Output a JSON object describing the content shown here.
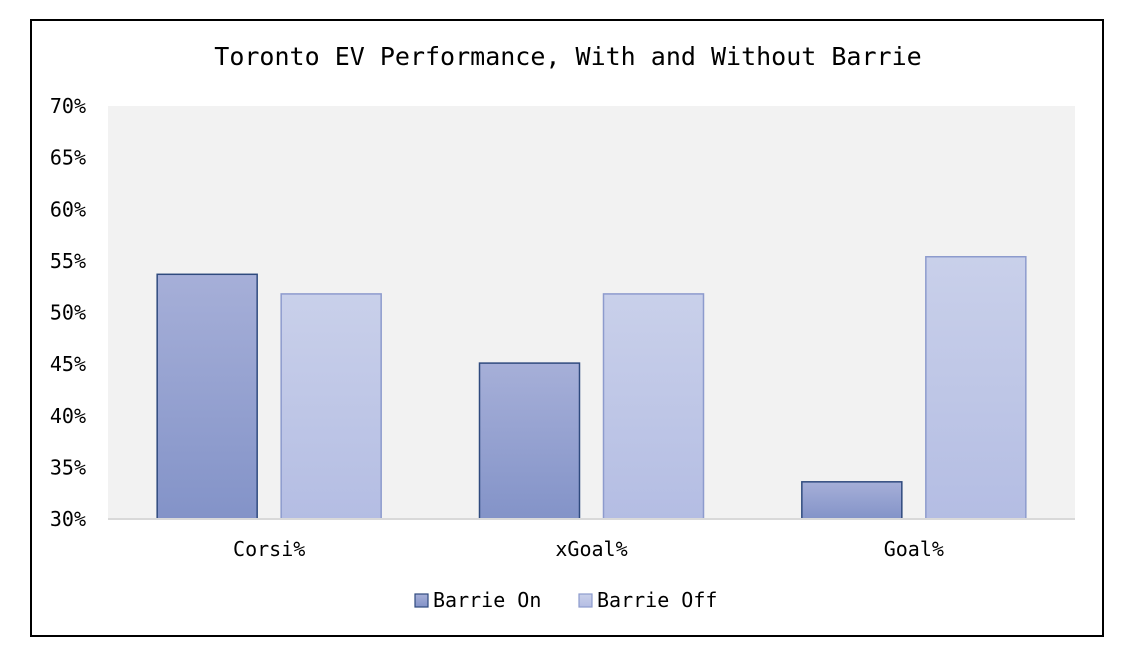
{
  "colors": {
    "plot_background": "#f2f2f2",
    "axis_line": "#d9d9d9",
    "barrie_on_top": "#a6afd8",
    "barrie_on_bottom": "#8393c8",
    "barrie_on_border": "#2f4a7e",
    "barrie_off_top": "#c9d0ea",
    "barrie_off_bottom": "#b4bde3",
    "barrie_off_border": "#8d9bcd"
  },
  "chart_data": {
    "type": "bar",
    "title": "Toronto EV Performance, With and Without Barrie",
    "xlabel": "",
    "ylabel": "",
    "categories": [
      "Corsi%",
      "xGoal%",
      "Goal%"
    ],
    "series": [
      {
        "name": "Barrie On",
        "values": [
          53.7,
          45.1,
          33.6
        ]
      },
      {
        "name": "Barrie Off",
        "values": [
          51.8,
          51.8,
          55.4
        ]
      }
    ],
    "ylim": [
      30,
      70
    ],
    "yticks": [
      30,
      35,
      40,
      45,
      50,
      55,
      60,
      65,
      70
    ],
    "ytick_labels": [
      "30%",
      "35%",
      "40%",
      "45%",
      "50%",
      "55%",
      "60%",
      "65%",
      "70%"
    ],
    "grid": false,
    "legend_position": "bottom"
  }
}
